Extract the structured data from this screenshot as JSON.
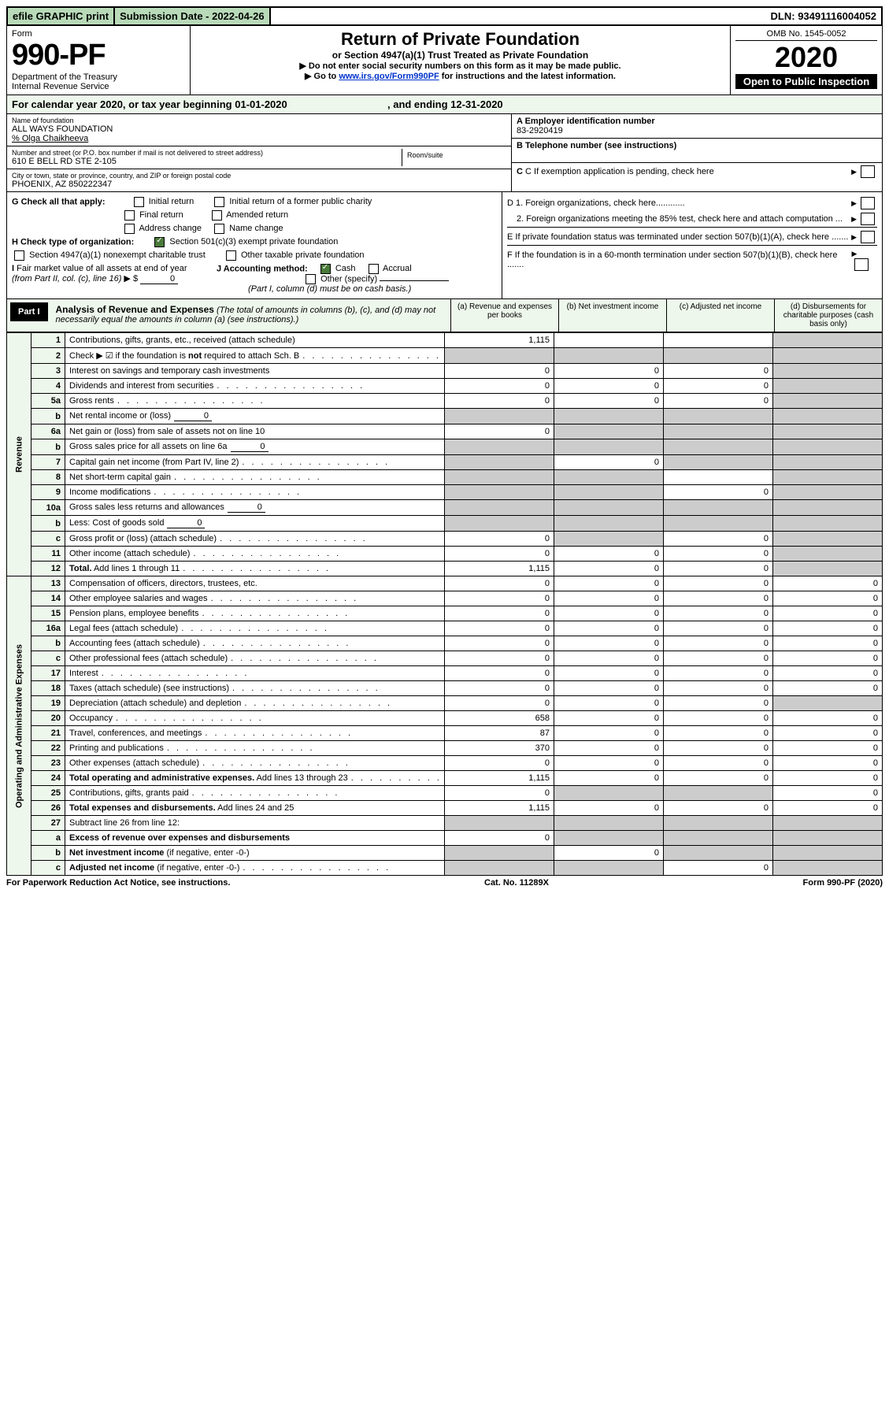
{
  "topbar": {
    "efile": "efile GRAPHIC print",
    "submission": "Submission Date - 2022-04-26",
    "dln": "DLN: 93491116004052"
  },
  "header": {
    "form_word": "Form",
    "form_num": "990-PF",
    "dept": "Department of the Treasury",
    "irs": "Internal Revenue Service",
    "title": "Return of Private Foundation",
    "subtitle": "or Section 4947(a)(1) Trust Treated as Private Foundation",
    "instr1": "▶ Do not enter social security numbers on this form as it may be made public.",
    "instr2_pre": "▶ Go to ",
    "instr2_link": "www.irs.gov/Form990PF",
    "instr2_post": " for instructions and the latest information.",
    "omb": "OMB No. 1545-0052",
    "year": "2020",
    "open": "Open to Public Inspection"
  },
  "calyear": {
    "pre": "For calendar year 2020, or tax year beginning ",
    "begin": "01-01-2020",
    "mid": " , and ending ",
    "end": "12-31-2020"
  },
  "id": {
    "name_lbl": "Name of foundation",
    "name": "ALL WAYS FOUNDATION",
    "pct": "% Olga Chaikheeva",
    "addr_lbl": "Number and street (or P.O. box number if mail is not delivered to street address)",
    "addr": "610 E BELL RD STE 2-105",
    "room_lbl": "Room/suite",
    "city_lbl": "City or town, state or province, country, and ZIP or foreign postal code",
    "city": "PHOENIX, AZ  850222347",
    "A_lbl": "A Employer identification number",
    "A_val": "83-2920419",
    "B_lbl": "B Telephone number (see instructions)",
    "C_lbl": "C If exemption application is pending, check here",
    "D1": "D 1. Foreign organizations, check here............",
    "D2": "2. Foreign organizations meeting the 85% test, check here and attach computation ...",
    "E": "E  If private foundation status was terminated under section 507(b)(1)(A), check here .......",
    "F": "F  If the foundation is in a 60-month termination under section 507(b)(1)(B), check here .......",
    "G_lbl": "G Check all that apply:",
    "G_opts": [
      "Initial return",
      "Initial return of a former public charity",
      "Final return",
      "Amended return",
      "Address change",
      "Name change"
    ],
    "H_lbl": "H Check type of organization:",
    "H_opt1": "Section 501(c)(3) exempt private foundation",
    "H_opt2": "Section 4947(a)(1) nonexempt charitable trust",
    "H_opt3": "Other taxable private foundation",
    "I_lbl": "I Fair market value of all assets at end of year (from Part II, col. (c), line 16) ▶ $",
    "I_val": "0",
    "J_lbl": "J Accounting method:",
    "J_cash": "Cash",
    "J_accr": "Accrual",
    "J_other": "Other (specify)",
    "J_note": "(Part I, column (d) must be on cash basis.)"
  },
  "part1head": {
    "part": "Part I",
    "title": "Analysis of Revenue and Expenses",
    "note": " (The total of amounts in columns (b), (c), and (d) may not necessarily equal the amounts in column (a) (see instructions).)",
    "cols": [
      "(a) Revenue and expenses per books",
      "(b) Net investment income",
      "(c) Adjusted net income",
      "(d) Disbursements for charitable purposes (cash basis only)"
    ]
  },
  "revenue_label": "Revenue",
  "expenses_label": "Operating and Administrative Expenses",
  "rows": [
    {
      "n": "1",
      "t": "Contributions, gifts, grants, etc., received (attach schedule)",
      "a": "1,115",
      "b": "",
      "c": "",
      "d": "shade"
    },
    {
      "n": "2",
      "t": "Check ▶ ☑ if the foundation is <b>not</b> required to attach Sch. B",
      "dots": true,
      "a": "shade",
      "b": "shade",
      "c": "shade",
      "d": "shade"
    },
    {
      "n": "3",
      "t": "Interest on savings and temporary cash investments",
      "a": "0",
      "b": "0",
      "c": "0",
      "d": "shade"
    },
    {
      "n": "4",
      "t": "Dividends and interest from securities",
      "dots": true,
      "a": "0",
      "b": "0",
      "c": "0",
      "d": "shade"
    },
    {
      "n": "5a",
      "t": "Gross rents",
      "dots": true,
      "a": "0",
      "b": "0",
      "c": "0",
      "d": "shade"
    },
    {
      "n": "b",
      "t": "Net rental income or (loss)",
      "inline": "0",
      "a": "shade",
      "b": "shade",
      "c": "shade",
      "d": "shade"
    },
    {
      "n": "6a",
      "t": "Net gain or (loss) from sale of assets not on line 10",
      "a": "0",
      "b": "shade",
      "c": "shade",
      "d": "shade"
    },
    {
      "n": "b",
      "t": "Gross sales price for all assets on line 6a",
      "inline": "0",
      "a": "shade",
      "b": "shade",
      "c": "shade",
      "d": "shade"
    },
    {
      "n": "7",
      "t": "Capital gain net income (from Part IV, line 2)",
      "dots": true,
      "a": "shade",
      "b": "0",
      "c": "shade",
      "d": "shade"
    },
    {
      "n": "8",
      "t": "Net short-term capital gain",
      "dots": true,
      "a": "shade",
      "b": "shade",
      "c": "",
      "d": "shade"
    },
    {
      "n": "9",
      "t": "Income modifications",
      "dots": true,
      "a": "shade",
      "b": "shade",
      "c": "0",
      "d": "shade"
    },
    {
      "n": "10a",
      "t": "Gross sales less returns and allowances",
      "inline": "0",
      "a": "shade",
      "b": "shade",
      "c": "shade",
      "d": "shade"
    },
    {
      "n": "b",
      "t": "Less: Cost of goods sold",
      "dots": true,
      "inline": "0",
      "a": "shade",
      "b": "shade",
      "c": "shade",
      "d": "shade"
    },
    {
      "n": "c",
      "t": "Gross profit or (loss) (attach schedule)",
      "dots": true,
      "a": "0",
      "b": "shade",
      "c": "0",
      "d": "shade"
    },
    {
      "n": "11",
      "t": "Other income (attach schedule)",
      "dots": true,
      "a": "0",
      "b": "0",
      "c": "0",
      "d": "shade"
    },
    {
      "n": "12",
      "t": "<b>Total.</b> Add lines 1 through 11",
      "dots": true,
      "a": "1,115",
      "b": "0",
      "c": "0",
      "d": "shade"
    }
  ],
  "exp_rows": [
    {
      "n": "13",
      "t": "Compensation of officers, directors, trustees, etc.",
      "a": "0",
      "b": "0",
      "c": "0",
      "d": "0"
    },
    {
      "n": "14",
      "t": "Other employee salaries and wages",
      "dots": true,
      "a": "0",
      "b": "0",
      "c": "0",
      "d": "0"
    },
    {
      "n": "15",
      "t": "Pension plans, employee benefits",
      "dots": true,
      "a": "0",
      "b": "0",
      "c": "0",
      "d": "0"
    },
    {
      "n": "16a",
      "t": "Legal fees (attach schedule)",
      "dots": true,
      "a": "0",
      "b": "0",
      "c": "0",
      "d": "0"
    },
    {
      "n": "b",
      "t": "Accounting fees (attach schedule)",
      "dots": true,
      "a": "0",
      "b": "0",
      "c": "0",
      "d": "0"
    },
    {
      "n": "c",
      "t": "Other professional fees (attach schedule)",
      "dots": true,
      "a": "0",
      "b": "0",
      "c": "0",
      "d": "0"
    },
    {
      "n": "17",
      "t": "Interest",
      "dots": true,
      "a": "0",
      "b": "0",
      "c": "0",
      "d": "0"
    },
    {
      "n": "18",
      "t": "Taxes (attach schedule) (see instructions)",
      "dots": true,
      "a": "0",
      "b": "0",
      "c": "0",
      "d": "0"
    },
    {
      "n": "19",
      "t": "Depreciation (attach schedule) and depletion",
      "dots": true,
      "a": "0",
      "b": "0",
      "c": "0",
      "d": "shade"
    },
    {
      "n": "20",
      "t": "Occupancy",
      "dots": true,
      "a": "658",
      "b": "0",
      "c": "0",
      "d": "0"
    },
    {
      "n": "21",
      "t": "Travel, conferences, and meetings",
      "dots": true,
      "a": "87",
      "b": "0",
      "c": "0",
      "d": "0"
    },
    {
      "n": "22",
      "t": "Printing and publications",
      "dots": true,
      "a": "370",
      "b": "0",
      "c": "0",
      "d": "0"
    },
    {
      "n": "23",
      "t": "Other expenses (attach schedule)",
      "dots": true,
      "a": "0",
      "b": "0",
      "c": "0",
      "d": "0"
    },
    {
      "n": "24",
      "t": "<b>Total operating and administrative expenses.</b> Add lines 13 through 23",
      "dots": true,
      "a": "1,115",
      "b": "0",
      "c": "0",
      "d": "0"
    },
    {
      "n": "25",
      "t": "Contributions, gifts, grants paid",
      "dots": true,
      "a": "0",
      "b": "shade",
      "c": "shade",
      "d": "0"
    },
    {
      "n": "26",
      "t": "<b>Total expenses and disbursements.</b> Add lines 24 and 25",
      "a": "1,115",
      "b": "0",
      "c": "0",
      "d": "0"
    },
    {
      "n": "27",
      "t": "Subtract line 26 from line 12:",
      "a": "shade",
      "b": "shade",
      "c": "shade",
      "d": "shade"
    },
    {
      "n": "a",
      "t": "<b>Excess of revenue over expenses and disbursements</b>",
      "a": "0",
      "b": "shade",
      "c": "shade",
      "d": "shade"
    },
    {
      "n": "b",
      "t": "<b>Net investment income</b> (if negative, enter -0-)",
      "a": "shade",
      "b": "0",
      "c": "shade",
      "d": "shade"
    },
    {
      "n": "c",
      "t": "<b>Adjusted net income</b> (if negative, enter -0-)",
      "dots": true,
      "a": "shade",
      "b": "shade",
      "c": "0",
      "d": "shade"
    }
  ],
  "footer": {
    "left": "For Paperwork Reduction Act Notice, see instructions.",
    "mid": "Cat. No. 11289X",
    "right": "Form 990-PF (2020)"
  }
}
